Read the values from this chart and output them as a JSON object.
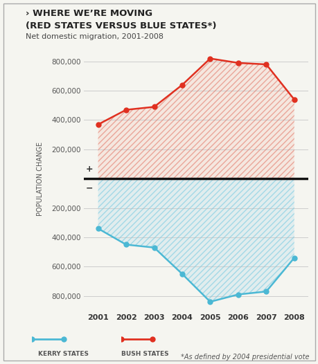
{
  "years": [
    2001,
    2002,
    2003,
    2004,
    2005,
    2006,
    2007,
    2008
  ],
  "bush_states": [
    370000,
    470000,
    490000,
    640000,
    820000,
    790000,
    780000,
    540000
  ],
  "kerry_states": [
    -340000,
    -450000,
    -470000,
    -650000,
    -840000,
    -790000,
    -770000,
    -540000
  ],
  "ylim": [
    -900000,
    900000
  ],
  "yticks": [
    -800000,
    -600000,
    -400000,
    -200000,
    0,
    200000,
    400000,
    600000,
    800000
  ],
  "title_line1": "› WHERE WE’RE MOVING",
  "title_line2": "(RED STATES VERSUS BLUE STATES*)",
  "subtitle": "Net domestic migration, 2001-2008",
  "red_color": "#e03020",
  "blue_color": "#4bb8d4",
  "zero_line_color": "#111111",
  "bg_color": "#f5f5f0",
  "grid_color": "#cccccc",
  "legend_kerry": "KERRY STATES",
  "legend_bush": "BUSH STATES",
  "footnote": "*As defined by 2004 presidential vote"
}
